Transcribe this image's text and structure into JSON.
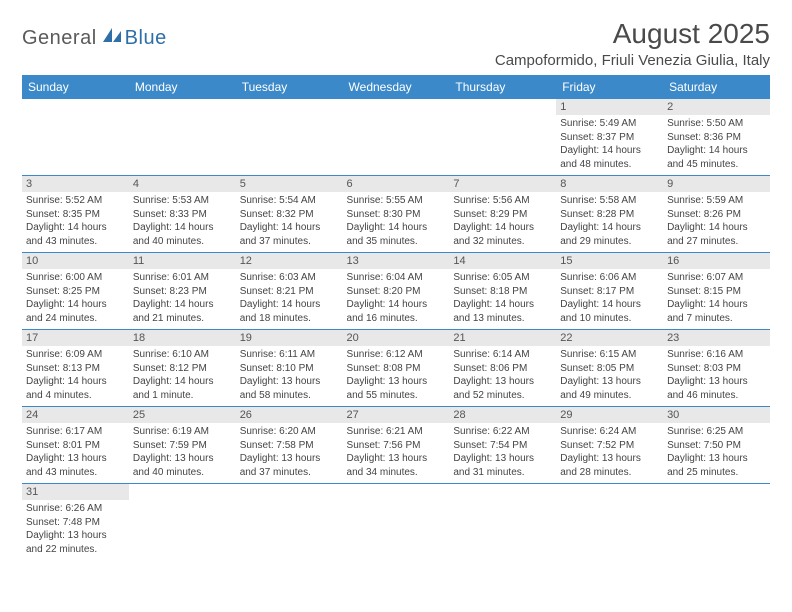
{
  "brand": {
    "general": "General",
    "blue": "Blue"
  },
  "title": "August 2025",
  "location": "Campoformido, Friuli Venezia Giulia, Italy",
  "colors": {
    "header_bg": "#3b89c9",
    "header_text": "#ffffff",
    "daynum_bg": "#e8e8e8",
    "border": "#3b89c9",
    "brand_gray": "#5a5a5a",
    "brand_blue": "#2f6fa8"
  },
  "weekdays": [
    "Sunday",
    "Monday",
    "Tuesday",
    "Wednesday",
    "Thursday",
    "Friday",
    "Saturday"
  ],
  "weeks": [
    [
      null,
      null,
      null,
      null,
      null,
      {
        "n": "1",
        "sr": "Sunrise: 5:49 AM",
        "ss": "Sunset: 8:37 PM",
        "d1": "Daylight: 14 hours",
        "d2": "and 48 minutes."
      },
      {
        "n": "2",
        "sr": "Sunrise: 5:50 AM",
        "ss": "Sunset: 8:36 PM",
        "d1": "Daylight: 14 hours",
        "d2": "and 45 minutes."
      }
    ],
    [
      {
        "n": "3",
        "sr": "Sunrise: 5:52 AM",
        "ss": "Sunset: 8:35 PM",
        "d1": "Daylight: 14 hours",
        "d2": "and 43 minutes."
      },
      {
        "n": "4",
        "sr": "Sunrise: 5:53 AM",
        "ss": "Sunset: 8:33 PM",
        "d1": "Daylight: 14 hours",
        "d2": "and 40 minutes."
      },
      {
        "n": "5",
        "sr": "Sunrise: 5:54 AM",
        "ss": "Sunset: 8:32 PM",
        "d1": "Daylight: 14 hours",
        "d2": "and 37 minutes."
      },
      {
        "n": "6",
        "sr": "Sunrise: 5:55 AM",
        "ss": "Sunset: 8:30 PM",
        "d1": "Daylight: 14 hours",
        "d2": "and 35 minutes."
      },
      {
        "n": "7",
        "sr": "Sunrise: 5:56 AM",
        "ss": "Sunset: 8:29 PM",
        "d1": "Daylight: 14 hours",
        "d2": "and 32 minutes."
      },
      {
        "n": "8",
        "sr": "Sunrise: 5:58 AM",
        "ss": "Sunset: 8:28 PM",
        "d1": "Daylight: 14 hours",
        "d2": "and 29 minutes."
      },
      {
        "n": "9",
        "sr": "Sunrise: 5:59 AM",
        "ss": "Sunset: 8:26 PM",
        "d1": "Daylight: 14 hours",
        "d2": "and 27 minutes."
      }
    ],
    [
      {
        "n": "10",
        "sr": "Sunrise: 6:00 AM",
        "ss": "Sunset: 8:25 PM",
        "d1": "Daylight: 14 hours",
        "d2": "and 24 minutes."
      },
      {
        "n": "11",
        "sr": "Sunrise: 6:01 AM",
        "ss": "Sunset: 8:23 PM",
        "d1": "Daylight: 14 hours",
        "d2": "and 21 minutes."
      },
      {
        "n": "12",
        "sr": "Sunrise: 6:03 AM",
        "ss": "Sunset: 8:21 PM",
        "d1": "Daylight: 14 hours",
        "d2": "and 18 minutes."
      },
      {
        "n": "13",
        "sr": "Sunrise: 6:04 AM",
        "ss": "Sunset: 8:20 PM",
        "d1": "Daylight: 14 hours",
        "d2": "and 16 minutes."
      },
      {
        "n": "14",
        "sr": "Sunrise: 6:05 AM",
        "ss": "Sunset: 8:18 PM",
        "d1": "Daylight: 14 hours",
        "d2": "and 13 minutes."
      },
      {
        "n": "15",
        "sr": "Sunrise: 6:06 AM",
        "ss": "Sunset: 8:17 PM",
        "d1": "Daylight: 14 hours",
        "d2": "and 10 minutes."
      },
      {
        "n": "16",
        "sr": "Sunrise: 6:07 AM",
        "ss": "Sunset: 8:15 PM",
        "d1": "Daylight: 14 hours",
        "d2": "and 7 minutes."
      }
    ],
    [
      {
        "n": "17",
        "sr": "Sunrise: 6:09 AM",
        "ss": "Sunset: 8:13 PM",
        "d1": "Daylight: 14 hours",
        "d2": "and 4 minutes."
      },
      {
        "n": "18",
        "sr": "Sunrise: 6:10 AM",
        "ss": "Sunset: 8:12 PM",
        "d1": "Daylight: 14 hours",
        "d2": "and 1 minute."
      },
      {
        "n": "19",
        "sr": "Sunrise: 6:11 AM",
        "ss": "Sunset: 8:10 PM",
        "d1": "Daylight: 13 hours",
        "d2": "and 58 minutes."
      },
      {
        "n": "20",
        "sr": "Sunrise: 6:12 AM",
        "ss": "Sunset: 8:08 PM",
        "d1": "Daylight: 13 hours",
        "d2": "and 55 minutes."
      },
      {
        "n": "21",
        "sr": "Sunrise: 6:14 AM",
        "ss": "Sunset: 8:06 PM",
        "d1": "Daylight: 13 hours",
        "d2": "and 52 minutes."
      },
      {
        "n": "22",
        "sr": "Sunrise: 6:15 AM",
        "ss": "Sunset: 8:05 PM",
        "d1": "Daylight: 13 hours",
        "d2": "and 49 minutes."
      },
      {
        "n": "23",
        "sr": "Sunrise: 6:16 AM",
        "ss": "Sunset: 8:03 PM",
        "d1": "Daylight: 13 hours",
        "d2": "and 46 minutes."
      }
    ],
    [
      {
        "n": "24",
        "sr": "Sunrise: 6:17 AM",
        "ss": "Sunset: 8:01 PM",
        "d1": "Daylight: 13 hours",
        "d2": "and 43 minutes."
      },
      {
        "n": "25",
        "sr": "Sunrise: 6:19 AM",
        "ss": "Sunset: 7:59 PM",
        "d1": "Daylight: 13 hours",
        "d2": "and 40 minutes."
      },
      {
        "n": "26",
        "sr": "Sunrise: 6:20 AM",
        "ss": "Sunset: 7:58 PM",
        "d1": "Daylight: 13 hours",
        "d2": "and 37 minutes."
      },
      {
        "n": "27",
        "sr": "Sunrise: 6:21 AM",
        "ss": "Sunset: 7:56 PM",
        "d1": "Daylight: 13 hours",
        "d2": "and 34 minutes."
      },
      {
        "n": "28",
        "sr": "Sunrise: 6:22 AM",
        "ss": "Sunset: 7:54 PM",
        "d1": "Daylight: 13 hours",
        "d2": "and 31 minutes."
      },
      {
        "n": "29",
        "sr": "Sunrise: 6:24 AM",
        "ss": "Sunset: 7:52 PM",
        "d1": "Daylight: 13 hours",
        "d2": "and 28 minutes."
      },
      {
        "n": "30",
        "sr": "Sunrise: 6:25 AM",
        "ss": "Sunset: 7:50 PM",
        "d1": "Daylight: 13 hours",
        "d2": "and 25 minutes."
      }
    ],
    [
      {
        "n": "31",
        "sr": "Sunrise: 6:26 AM",
        "ss": "Sunset: 7:48 PM",
        "d1": "Daylight: 13 hours",
        "d2": "and 22 minutes."
      },
      null,
      null,
      null,
      null,
      null,
      null
    ]
  ]
}
